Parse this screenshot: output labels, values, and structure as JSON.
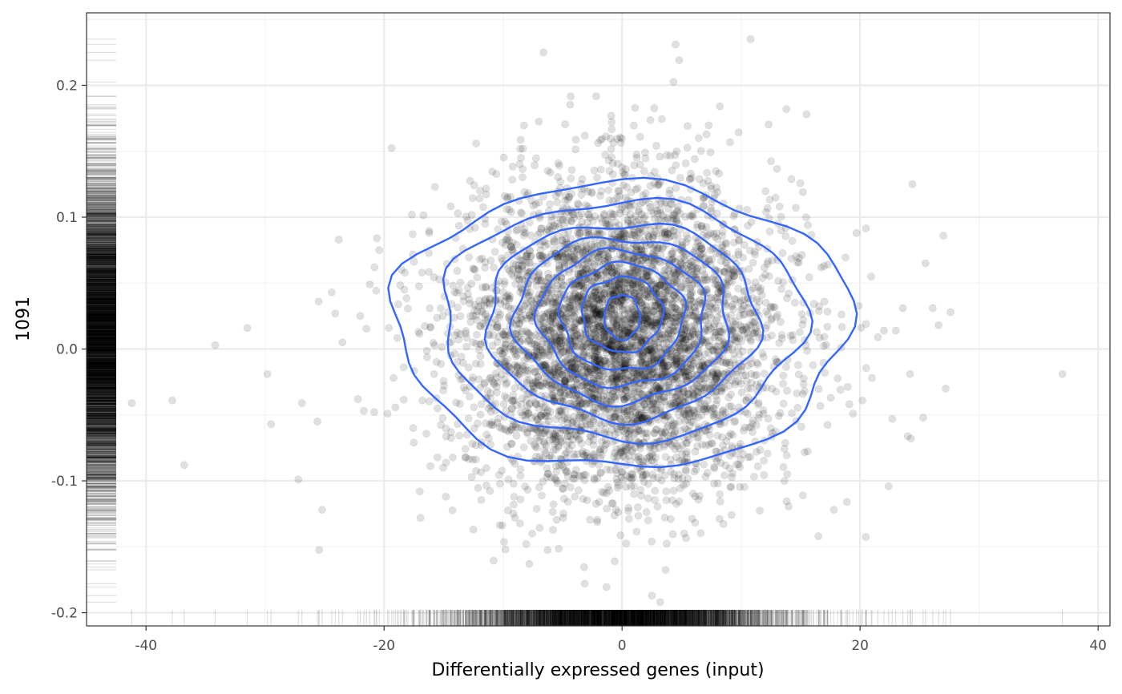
{
  "chart_data": {
    "type": "scatter",
    "title": "",
    "xlabel": "Differentially expressed genes (input)",
    "ylabel": "1091",
    "xlim": [
      -45,
      41
    ],
    "ylim": [
      -0.21,
      0.255
    ],
    "x_ticks": [
      -40,
      -20,
      0,
      20,
      40
    ],
    "x_tick_labels": [
      "-40",
      "-20",
      "0",
      "20",
      "40"
    ],
    "y_ticks": [
      -0.2,
      -0.1,
      0.0,
      0.1,
      0.2
    ],
    "y_tick_labels": [
      "-0.2",
      "-0.1",
      "0.0",
      "0.1",
      "0.2"
    ],
    "grid": true,
    "theme": "bw",
    "legend": "none",
    "point_color": "#000000",
    "point_alpha": 0.12,
    "contour_color": "#3366FF",
    "marginal_rugs": [
      "left",
      "bottom"
    ],
    "point_cloud": {
      "n_points": 5000,
      "x_center": 0,
      "x_sd": 6.5,
      "y_center": 0.01,
      "y_sd": 0.058
    },
    "outlier_points": [
      [
        -41.2,
        -0.041
      ],
      [
        -37.8,
        -0.039
      ],
      [
        -36.8,
        -0.088
      ],
      [
        -34.2,
        0.003
      ],
      [
        -31.5,
        0.016
      ],
      [
        -29.8,
        -0.019
      ],
      [
        -29.5,
        -0.057
      ],
      [
        -27.2,
        -0.099
      ],
      [
        -25.6,
        -0.055
      ],
      [
        -25.2,
        -0.122
      ],
      [
        -25.5,
        0.036
      ],
      [
        -24.4,
        0.043
      ],
      [
        -24.1,
        0.027
      ],
      [
        -23.8,
        0.083
      ],
      [
        -23.5,
        0.005
      ],
      [
        -22.2,
        -0.038
      ],
      [
        -22.0,
        0.025
      ],
      [
        -21.7,
        -0.047
      ],
      [
        -21.2,
        0.049
      ],
      [
        -20.8,
        0.062
      ],
      [
        -20.6,
        0.084
      ],
      [
        -20.4,
        0.075
      ],
      [
        -19.6,
        0.016
      ],
      [
        -19.2,
        -0.022
      ],
      [
        -18.8,
        0.034
      ],
      [
        -18.3,
        0.045
      ],
      [
        -17.5,
        -0.071
      ],
      [
        -17.0,
        -0.108
      ],
      [
        -16.8,
        0.058
      ],
      [
        -16.2,
        0.088
      ],
      [
        -15.8,
        -0.019
      ],
      [
        -15.5,
        -0.045
      ],
      [
        -14.8,
        -0.112
      ],
      [
        -13.8,
        0.103
      ],
      [
        -12.5,
        -0.137
      ],
      [
        -11.5,
        0.095
      ],
      [
        -9.8,
        -0.152
      ],
      [
        -8.5,
        0.145
      ],
      [
        -7.8,
        -0.163
      ],
      [
        -6.6,
        0.225
      ],
      [
        3.2,
        -0.192
      ],
      [
        4.5,
        0.231
      ],
      [
        4.8,
        0.219
      ],
      [
        10.8,
        0.235
      ],
      [
        13.8,
        0.182
      ],
      [
        15.5,
        0.178
      ],
      [
        15.2,
        0.119
      ],
      [
        16.5,
        -0.142
      ],
      [
        17.3,
        0.064
      ],
      [
        17.8,
        -0.122
      ],
      [
        18.4,
        0.001
      ],
      [
        18.9,
        -0.116
      ],
      [
        19.4,
        -0.049
      ],
      [
        19.7,
        0.088
      ],
      [
        20.2,
        -0.039
      ],
      [
        20.5,
        0.019
      ],
      [
        21.0,
        -0.022
      ],
      [
        21.5,
        0.009
      ],
      [
        22.0,
        0.014
      ],
      [
        22.4,
        -0.104
      ],
      [
        22.7,
        -0.053
      ],
      [
        23.0,
        0.014
      ],
      [
        23.6,
        0.031
      ],
      [
        24.0,
        -0.066
      ],
      [
        24.2,
        -0.019
      ],
      [
        24.4,
        0.125
      ],
      [
        25.3,
        -0.052
      ],
      [
        25.5,
        0.065
      ],
      [
        26.1,
        0.031
      ],
      [
        26.6,
        0.018
      ],
      [
        27.0,
        0.086
      ],
      [
        27.2,
        -0.03
      ],
      [
        27.6,
        0.028
      ],
      [
        37.0,
        -0.019
      ]
    ],
    "density_contours": [
      {
        "cx": 0.0,
        "cy": 0.017,
        "rx": 19.1,
        "ry": 0.108
      },
      {
        "cx": 0.0,
        "cy": 0.021,
        "rx": 15.2,
        "ry": 0.0905
      },
      {
        "cx": 0.0,
        "cy": 0.021,
        "rx": 11.4,
        "ry": 0.0745
      },
      {
        "cx": 0.0,
        "cy": 0.022,
        "rx": 9.0,
        "ry": 0.0625
      },
      {
        "cx": 0.0,
        "cy": 0.023,
        "rx": 7.0,
        "ry": 0.0515
      },
      {
        "cx": 0.0,
        "cy": 0.024,
        "rx": 5.2,
        "ry": 0.0405
      },
      {
        "cx": 0.0,
        "cy": 0.026,
        "rx": 3.4,
        "ry": 0.0285
      },
      {
        "cx": 0.0,
        "cy": 0.024,
        "rx": 1.5,
        "ry": 0.017
      }
    ]
  }
}
